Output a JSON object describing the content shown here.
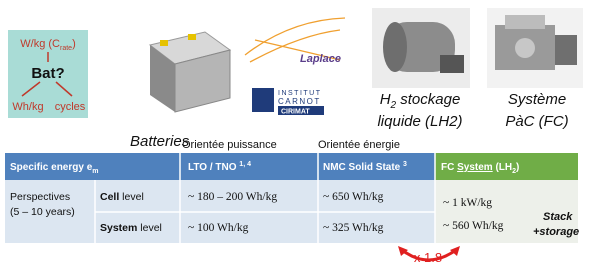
{
  "diagram": {
    "top": "W/kg (C",
    "top_sub": "rate",
    "top_end": ")",
    "center": "Bat?",
    "left": "Wh/kg",
    "right": "cycles"
  },
  "images": {
    "batteries": "Batteries",
    "laplace": "Laplace",
    "carnot_1": "INSTITUT",
    "carnot_2": "CARNOT",
    "carnot_3": "CIRIMAT",
    "lh2": {
      "line1": "H",
      "line1_sub": "2",
      "line1_end": " stockage",
      "line2": "liquide (LH2)"
    },
    "fc": {
      "line1": "Système",
      "line2": "PàC (FC)"
    }
  },
  "labels": {
    "power": "Orientée puissance",
    "energy": "Orientée énergie"
  },
  "table": {
    "header": {
      "col0": "Specific energy e",
      "col0_sub": "m",
      "col1": "LTO / TNO ",
      "col1_sup": "1, 4",
      "col2": "NMC Solid State ",
      "col2_sup": "3",
      "col3": "FC ",
      "col3_u": "System",
      "col3_end": " (LH",
      "col3_sub": "2",
      "col3_close": ")"
    },
    "group": {
      "line1": "Perspectives",
      "line2": "(5 – 10 years)"
    },
    "rows": [
      {
        "bold": "Cell",
        "rest": " level",
        "lto": "~ 180 – 200 Wh/kg",
        "nmc": "~ 650 Wh/kg",
        "fc": "~ 1 kW/kg"
      },
      {
        "bold": "System",
        "rest": " level",
        "lto": "~ 100 Wh/kg",
        "nmc": "~ 325 Wh/kg",
        "fc": "~ 560 Wh/kg"
      }
    ],
    "note": {
      "line1": "Stack",
      "line2": "+storage"
    }
  },
  "ratio": "x 1.8"
}
